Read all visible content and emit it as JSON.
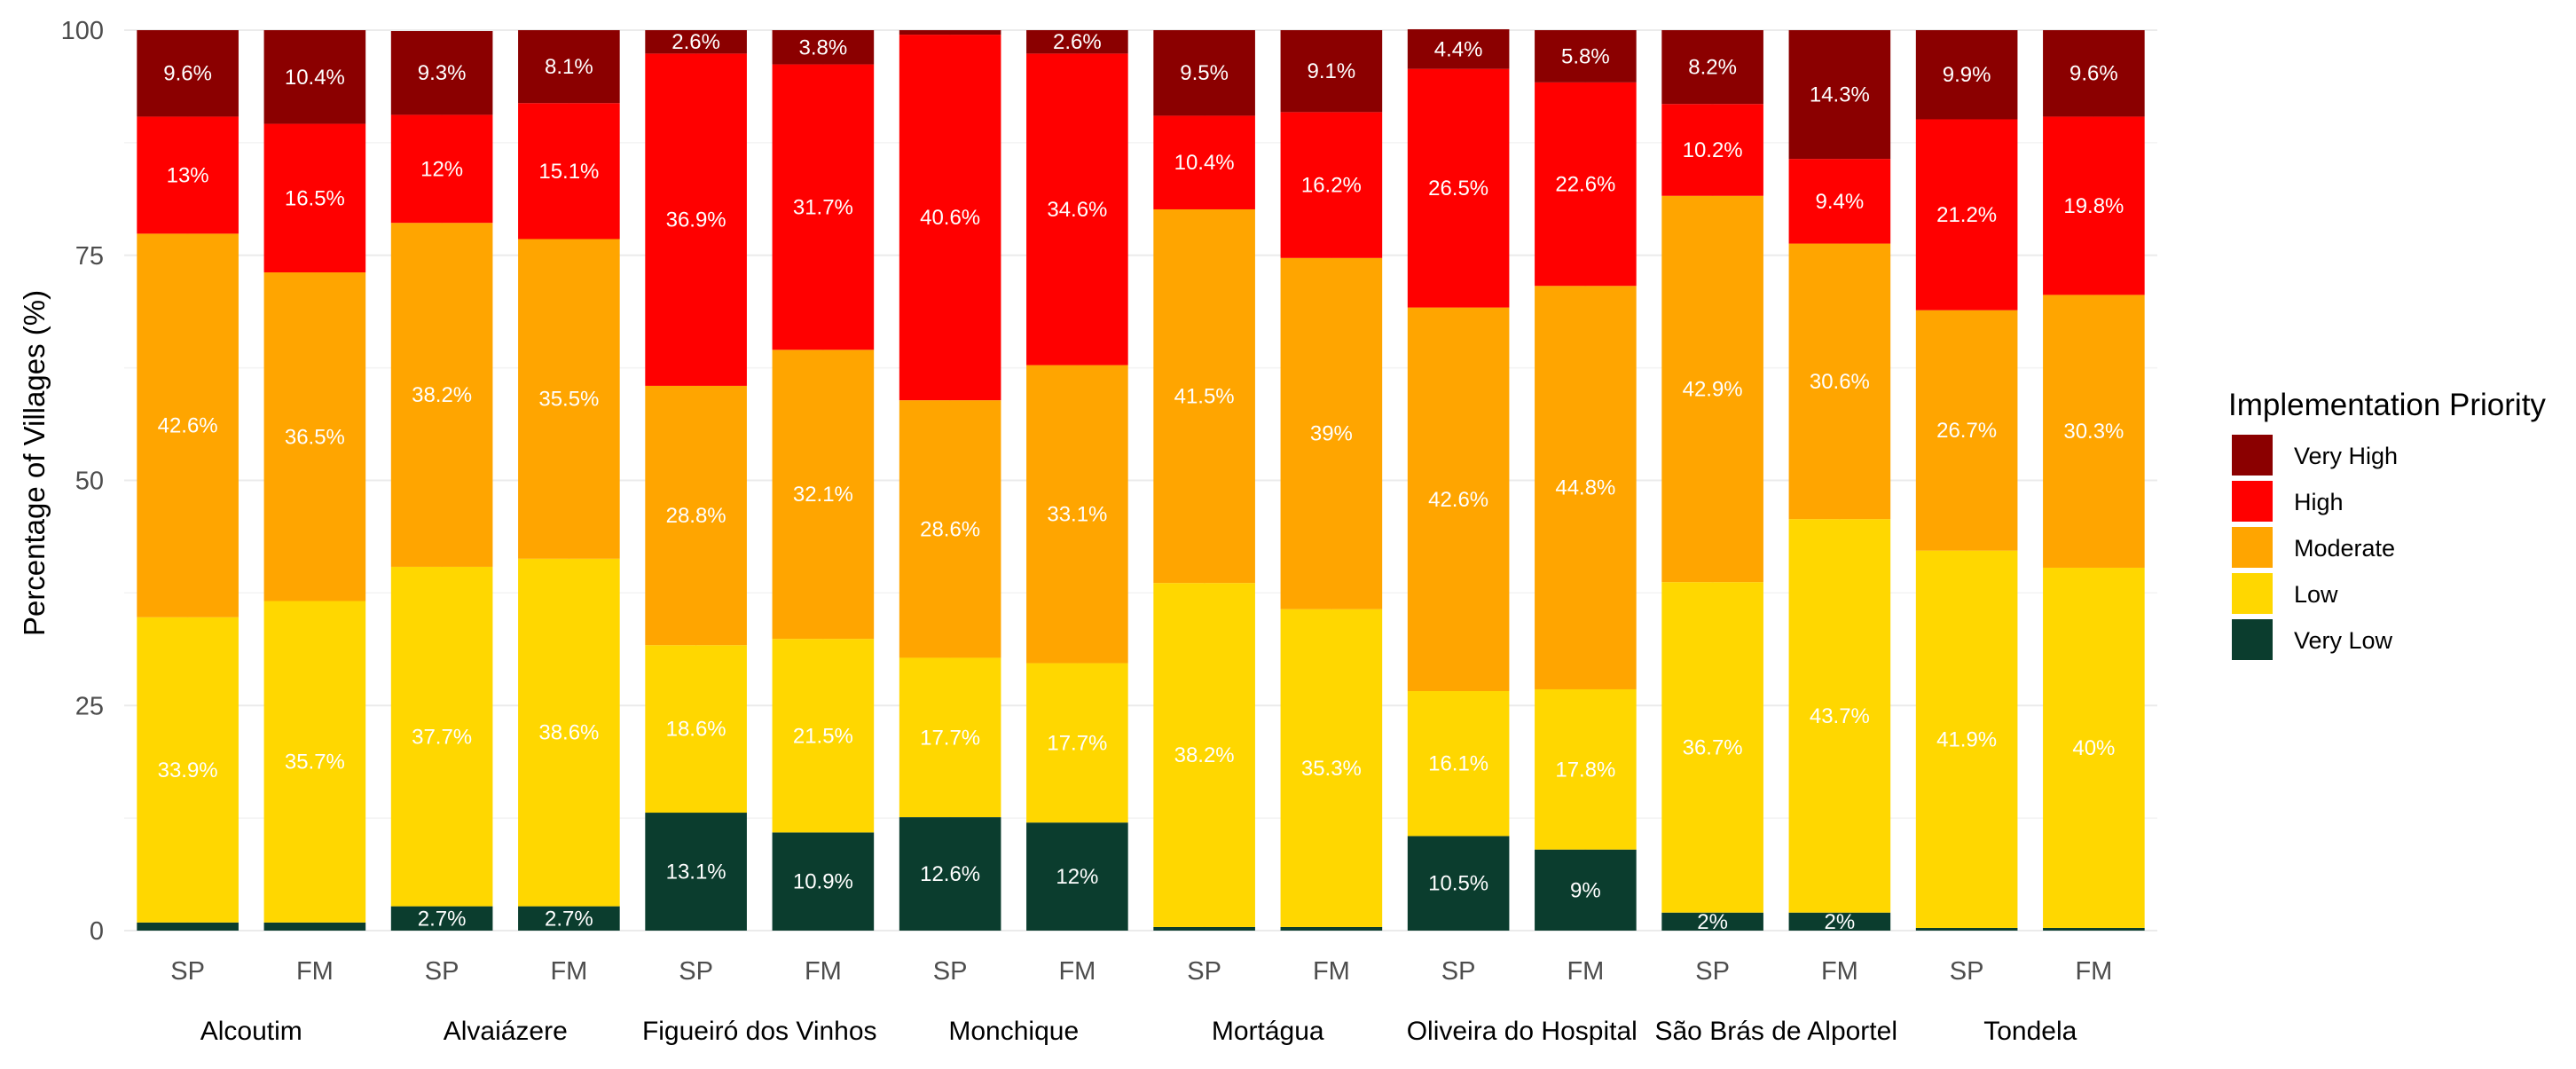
{
  "chart_data": {
    "type": "bar",
    "stacked": true,
    "title": "",
    "xlabel": "",
    "ylabel": "Percentage of Villages (%)",
    "ylim": [
      0,
      100
    ],
    "yticks": [
      "0",
      "25",
      "50",
      "75",
      "100"
    ],
    "legend_title": "Implementation Priority",
    "legend_position": "right",
    "legend": [
      "Very High",
      "High",
      "Moderate",
      "Low",
      "Very Low"
    ],
    "colors": {
      "Very Low": "#0b3d2e",
      "Low": "#ffd700",
      "Moderate": "#ffa500",
      "High": "#ff0000",
      "Very High": "#8b0000"
    },
    "groups": [
      "Alcoutim",
      "Alvaiázere",
      "Figueiró dos Vinhos",
      "Monchique",
      "Mortágua",
      "Oliveira do Hospital",
      "São Brás de Alportel",
      "Tondela"
    ],
    "bars": [
      {
        "group": "Alcoutim",
        "method": "SP",
        "values": {
          "Very Low": 0.9,
          "Low": 33.9,
          "Moderate": 42.6,
          "High": 13.0,
          "Very High": 9.6
        },
        "labels": {
          "Very Low": "",
          "Low": "33.9%",
          "Moderate": "42.6%",
          "High": "13%",
          "Very High": "9.6%"
        }
      },
      {
        "group": "Alcoutim",
        "method": "FM",
        "values": {
          "Very Low": 0.9,
          "Low": 35.7,
          "Moderate": 36.5,
          "High": 16.5,
          "Very High": 10.4
        },
        "labels": {
          "Very Low": "",
          "Low": "35.7%",
          "Moderate": "36.5%",
          "High": "16.5%",
          "Very High": "10.4%"
        }
      },
      {
        "group": "Alvaiázere",
        "method": "SP",
        "values": {
          "Very Low": 2.7,
          "Low": 37.7,
          "Moderate": 38.2,
          "High": 12.0,
          "Very High": 9.3
        },
        "labels": {
          "Very Low": "2.7%",
          "Low": "37.7%",
          "Moderate": "38.2%",
          "High": "12%",
          "Very High": "9.3%"
        }
      },
      {
        "group": "Alvaiázere",
        "method": "FM",
        "values": {
          "Very Low": 2.7,
          "Low": 38.6,
          "Moderate": 35.5,
          "High": 15.1,
          "Very High": 8.1
        },
        "labels": {
          "Very Low": "2.7%",
          "Low": "38.6%",
          "Moderate": "35.5%",
          "High": "15.1%",
          "Very High": "8.1%"
        }
      },
      {
        "group": "Figueiró dos Vinhos",
        "method": "SP",
        "values": {
          "Very Low": 13.1,
          "Low": 18.6,
          "Moderate": 28.8,
          "High": 36.9,
          "Very High": 2.6
        },
        "labels": {
          "Very Low": "13.1%",
          "Low": "18.6%",
          "Moderate": "28.8%",
          "High": "36.9%",
          "Very High": "2.6%"
        }
      },
      {
        "group": "Figueiró dos Vinhos",
        "method": "FM",
        "values": {
          "Very Low": 10.9,
          "Low": 21.5,
          "Moderate": 32.1,
          "High": 31.7,
          "Very High": 3.8
        },
        "labels": {
          "Very Low": "10.9%",
          "Low": "21.5%",
          "Moderate": "32.1%",
          "High": "31.7%",
          "Very High": "3.8%"
        }
      },
      {
        "group": "Monchique",
        "method": "SP",
        "values": {
          "Very Low": 12.6,
          "Low": 17.7,
          "Moderate": 28.6,
          "High": 40.6,
          "Very High": 0.5
        },
        "labels": {
          "Very Low": "12.6%",
          "Low": "17.7%",
          "Moderate": "28.6%",
          "High": "40.6%",
          "Very High": ""
        }
      },
      {
        "group": "Monchique",
        "method": "FM",
        "values": {
          "Very Low": 12.0,
          "Low": 17.7,
          "Moderate": 33.1,
          "High": 34.6,
          "Very High": 2.6
        },
        "labels": {
          "Very Low": "12%",
          "Low": "17.7%",
          "Moderate": "33.1%",
          "High": "34.6%",
          "Very High": "2.6%"
        }
      },
      {
        "group": "Mortágua",
        "method": "SP",
        "values": {
          "Very Low": 0.4,
          "Low": 38.2,
          "Moderate": 41.5,
          "High": 10.4,
          "Very High": 9.5
        },
        "labels": {
          "Very Low": "",
          "Low": "38.2%",
          "Moderate": "41.5%",
          "High": "10.4%",
          "Very High": "9.5%"
        }
      },
      {
        "group": "Mortágua",
        "method": "FM",
        "values": {
          "Very Low": 0.4,
          "Low": 35.3,
          "Moderate": 39.0,
          "High": 16.2,
          "Very High": 9.1
        },
        "labels": {
          "Very Low": "",
          "Low": "35.3%",
          "Moderate": "39%",
          "High": "16.2%",
          "Very High": "9.1%"
        }
      },
      {
        "group": "Oliveira do Hospital",
        "method": "SP",
        "values": {
          "Very Low": 10.5,
          "Low": 16.1,
          "Moderate": 42.6,
          "High": 26.5,
          "Very High": 4.4
        },
        "labels": {
          "Very Low": "10.5%",
          "Low": "16.1%",
          "Moderate": "42.6%",
          "High": "26.5%",
          "Very High": "4.4%"
        }
      },
      {
        "group": "Oliveira do Hospital",
        "method": "FM",
        "values": {
          "Very Low": 9.0,
          "Low": 17.8,
          "Moderate": 44.8,
          "High": 22.6,
          "Very High": 5.8
        },
        "labels": {
          "Very Low": "9%",
          "Low": "17.8%",
          "Moderate": "44.8%",
          "High": "22.6%",
          "Very High": "5.8%"
        }
      },
      {
        "group": "São Brás de Alportel",
        "method": "SP",
        "values": {
          "Very Low": 2.0,
          "Low": 36.7,
          "Moderate": 42.9,
          "High": 10.2,
          "Very High": 8.2
        },
        "labels": {
          "Very Low": "2%",
          "Low": "36.7%",
          "Moderate": "42.9%",
          "High": "10.2%",
          "Very High": "8.2%"
        }
      },
      {
        "group": "São Brás de Alportel",
        "method": "FM",
        "values": {
          "Very Low": 2.0,
          "Low": 43.7,
          "Moderate": 30.6,
          "High": 9.4,
          "Very High": 14.3
        },
        "labels": {
          "Very Low": "2%",
          "Low": "43.7%",
          "Moderate": "30.6%",
          "High": "9.4%",
          "Very High": "14.3%"
        }
      },
      {
        "group": "Tondela",
        "method": "SP",
        "values": {
          "Very Low": 0.3,
          "Low": 41.9,
          "Moderate": 26.7,
          "High": 21.2,
          "Very High": 9.9
        },
        "labels": {
          "Very Low": "",
          "Low": "41.9%",
          "Moderate": "26.7%",
          "High": "21.2%",
          "Very High": "9.9%"
        }
      },
      {
        "group": "Tondela",
        "method": "FM",
        "values": {
          "Very Low": 0.3,
          "Low": 40.0,
          "Moderate": 30.3,
          "High": 19.8,
          "Very High": 9.6
        },
        "labels": {
          "Very Low": "",
          "Low": "40%",
          "Moderate": "30.3%",
          "High": "19.8%",
          "Very High": "9.6%"
        }
      }
    ]
  }
}
